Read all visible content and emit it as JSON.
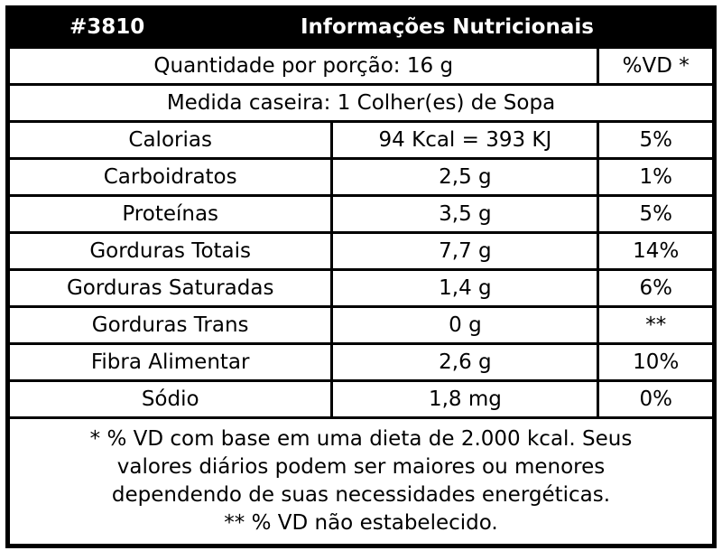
{
  "header": {
    "code": "#3810",
    "title": "Informações Nutricionais"
  },
  "serving": {
    "label": "Quantidade por porção: 16 g",
    "dv_header": "%VD *"
  },
  "household_measure": "Medida caseira: 1  Colher(es) de Sopa",
  "table": {
    "rows": [
      [
        "Calorias",
        "94 Kcal = 393 KJ",
        "5%"
      ],
      [
        "Carboidratos",
        "2,5 g",
        "1%"
      ],
      [
        "Proteínas",
        "3,5 g",
        "5%"
      ],
      [
        "Gorduras Totais",
        "7,7 g",
        "14%"
      ],
      [
        "Gorduras Saturadas",
        "1,4 g",
        "6%"
      ],
      [
        "Gorduras Trans",
        "0 g",
        "**"
      ],
      [
        "Fibra Alimentar",
        "2,6 g",
        "10%"
      ],
      [
        "Sódio",
        "1,8 mg",
        "0%"
      ]
    ]
  },
  "footnotes": [
    "* % VD com base em uma dieta de 2.000 kcal. Seus",
    "valores diários podem ser maiores ou menores",
    "dependendo de suas necessidades energéticas.",
    "** % VD não estabelecido."
  ]
}
